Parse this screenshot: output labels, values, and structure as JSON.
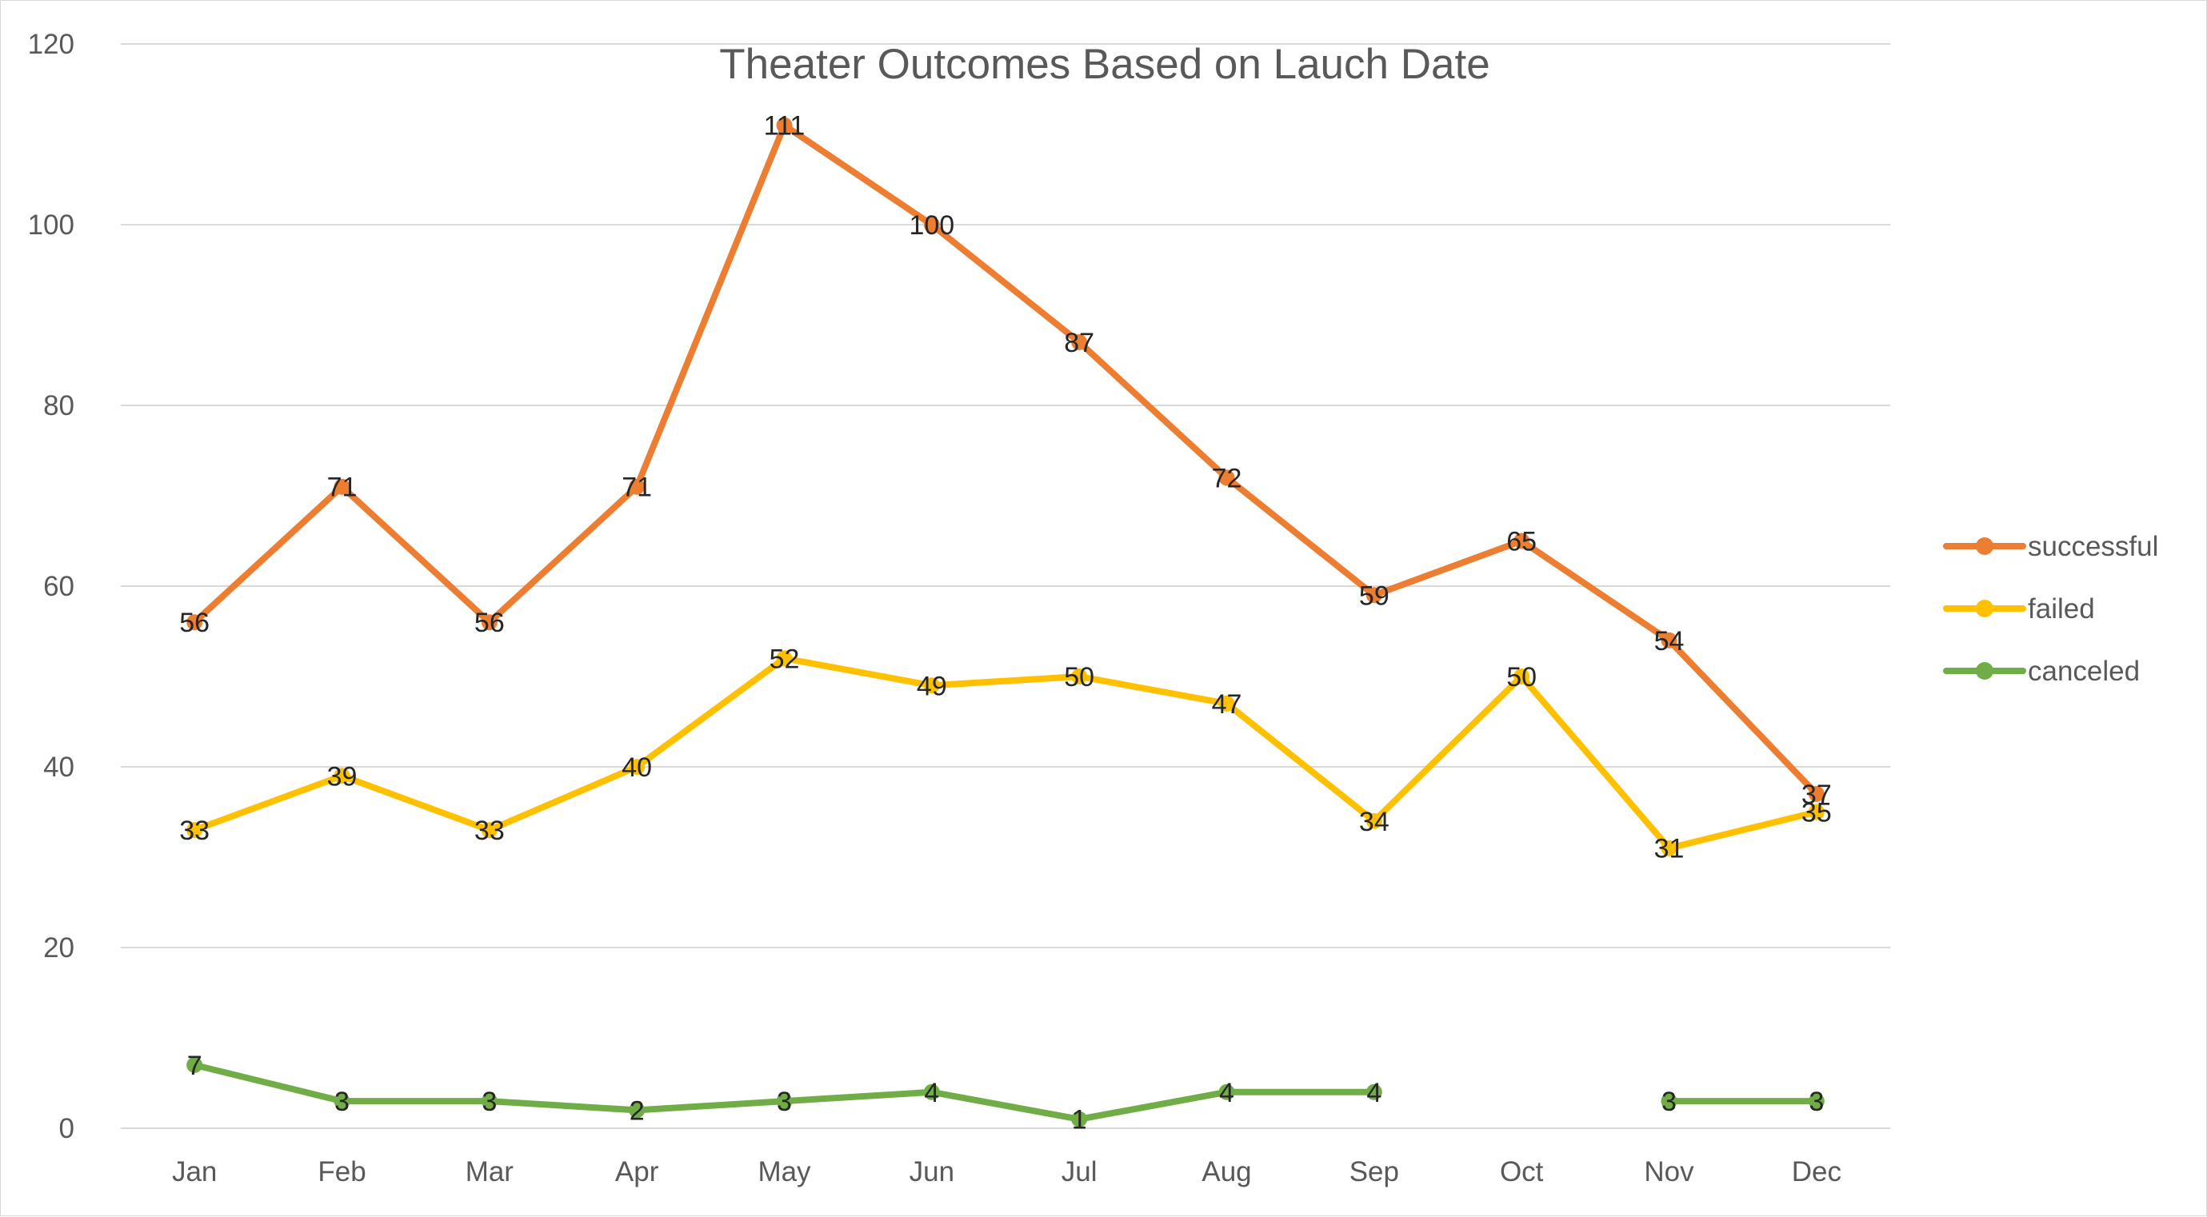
{
  "chart_data": {
    "type": "line",
    "title": "Theater Outcomes Based on Lauch Date",
    "xlabel": "",
    "ylabel": "",
    "categories": [
      "Jan",
      "Feb",
      "Mar",
      "Apr",
      "May",
      "Jun",
      "Jul",
      "Aug",
      "Sep",
      "Oct",
      "Nov",
      "Dec"
    ],
    "ylim": [
      0,
      120
    ],
    "yticks": [
      0,
      20,
      40,
      60,
      80,
      100,
      120
    ],
    "grid": true,
    "legend_position": "right",
    "series": [
      {
        "name": "successful",
        "color": "#ED7D31",
        "values": [
          56,
          71,
          56,
          71,
          111,
          100,
          87,
          72,
          59,
          65,
          54,
          37
        ]
      },
      {
        "name": "failed",
        "color": "#FFC000",
        "values": [
          33,
          39,
          33,
          40,
          52,
          49,
          50,
          47,
          34,
          50,
          31,
          35
        ]
      },
      {
        "name": "canceled",
        "color": "#70AD47",
        "values": [
          7,
          3,
          3,
          2,
          3,
          4,
          1,
          4,
          4,
          null,
          3,
          3
        ]
      }
    ]
  }
}
